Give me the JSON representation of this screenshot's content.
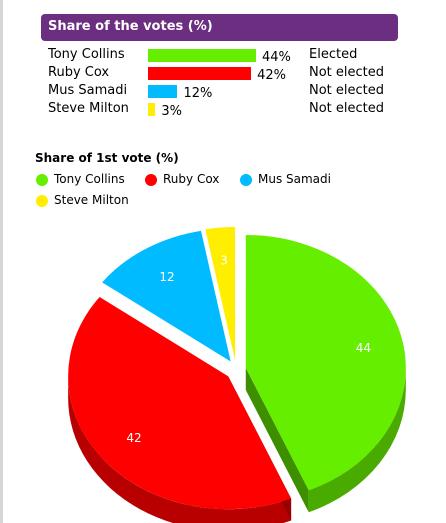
{
  "header": {
    "title": "Share of the votes (%)"
  },
  "results": [
    {
      "name": "Tony Collins",
      "percent": 44,
      "percent_label": "44%",
      "status": "Elected",
      "color": "#66ee00"
    },
    {
      "name": "Ruby Cox",
      "percent": 42,
      "percent_label": "42%",
      "status": "Not elected",
      "color": "#ff0000"
    },
    {
      "name": "Mus Samadi",
      "percent": 12,
      "percent_label": "12%",
      "status": "Not elected",
      "color": "#00bbff"
    },
    {
      "name": "Steve Milton",
      "percent": 3,
      "percent_label": "3%",
      "status": "Not elected",
      "color": "#ffee00"
    }
  ],
  "chart_data": {
    "type": "pie",
    "title": "Share of 1st vote (%)",
    "legend_position": "top-left",
    "categories": [
      "Tony Collins",
      "Ruby Cox",
      "Mus Samadi",
      "Steve Milton"
    ],
    "values": [
      44,
      42,
      12,
      3
    ],
    "data_labels": [
      "44",
      "42",
      "12",
      "3"
    ],
    "colors": [
      "#66ee00",
      "#ff0000",
      "#00bbff",
      "#ffee00"
    ],
    "style": "3d-exploded"
  }
}
